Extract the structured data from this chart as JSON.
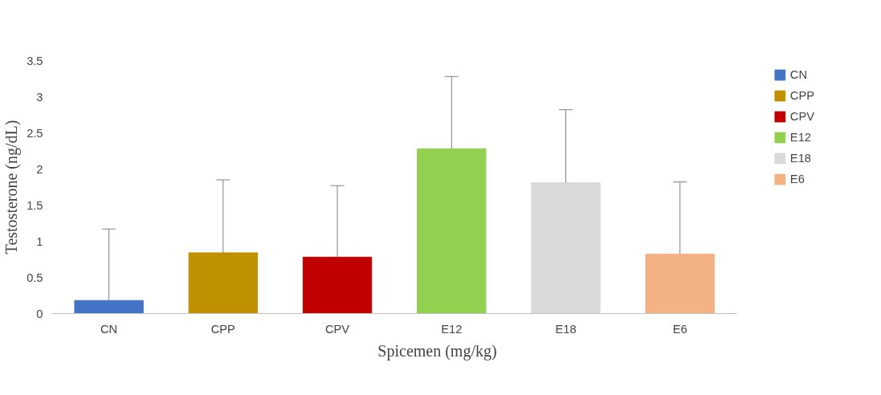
{
  "chart_data": {
    "type": "bar",
    "xlabel": "Spicemen (mg/kg)",
    "ylabel": "Testosterone (ng/dL)",
    "categories": [
      "CN",
      "CPP",
      "CPV",
      "E12",
      "E18",
      "E6"
    ],
    "series": [
      {
        "name": "CN",
        "color": "#4472c4",
        "values": [
          0.18,
          null,
          null,
          null,
          null,
          null
        ],
        "errors": [
          [
            0.18,
            1.17
          ],
          null,
          null,
          null,
          null,
          null
        ]
      },
      {
        "name": "CPP",
        "color": "#bf9000",
        "values": [
          null,
          0.84,
          null,
          null,
          null,
          null
        ],
        "errors": [
          null,
          [
            0.84,
            1.85
          ],
          null,
          null,
          null,
          null
        ]
      },
      {
        "name": "CPV",
        "color": "#c00000",
        "values": [
          null,
          null,
          0.78,
          null,
          null,
          null
        ],
        "errors": [
          null,
          null,
          [
            0.78,
            1.77
          ],
          null,
          null,
          null
        ]
      },
      {
        "name": "E12",
        "color": "#92d050",
        "values": [
          null,
          null,
          null,
          2.28,
          null,
          null
        ],
        "errors": [
          null,
          null,
          null,
          [
            2.28,
            3.28
          ],
          null,
          null
        ]
      },
      {
        "name": "E18",
        "color": "#d9d9d9",
        "values": [
          null,
          null,
          null,
          null,
          1.81,
          null
        ],
        "errors": [
          null,
          null,
          null,
          null,
          [
            1.81,
            2.82
          ],
          null
        ]
      },
      {
        "name": "E6",
        "color": "#f4b183",
        "values": [
          null,
          null,
          null,
          null,
          null,
          0.82
        ],
        "errors": [
          null,
          null,
          null,
          null,
          null,
          [
            0.82,
            1.82
          ]
        ]
      }
    ],
    "ylim": [
      0,
      3.5
    ],
    "yticks": [
      0,
      0.5,
      1,
      1.5,
      2,
      2.5,
      3,
      3.5
    ],
    "grid": false,
    "legend": "right"
  }
}
